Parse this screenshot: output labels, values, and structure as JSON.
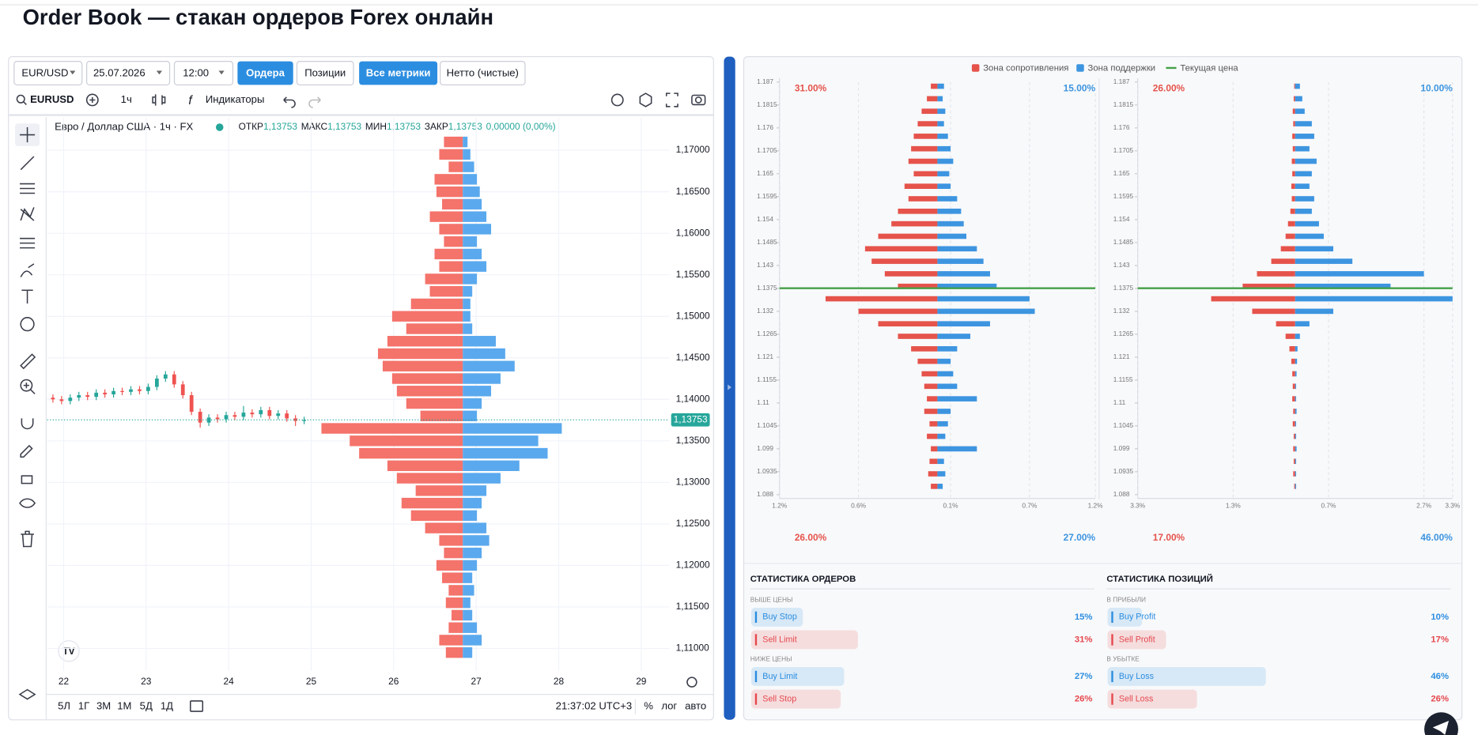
{
  "header": {
    "title": "Order Book — стакан ордеров Forex онлайн"
  },
  "toolbar": {
    "pair": "EUR/USD",
    "date": "25.07.2026",
    "time": "12:00",
    "buttons": [
      "Ордера",
      "Позиции",
      "Все метрики",
      "Нетто (чистые)"
    ]
  },
  "chart_toolbar": {
    "symbol": "EURUSD",
    "interval": "1ч",
    "indicators": "Индикаторы"
  },
  "bottom_bar": {
    "periods": [
      "5Л",
      "1Г",
      "3М",
      "1М",
      "5Д",
      "1Д"
    ],
    "clock": "21:37:02 UTC+3",
    "percent": "%",
    "log": "лог",
    "auto": "авто"
  },
  "chart_data": [
    {
      "type": "candlestick",
      "legend_title": "Евро / Доллар США · 1ч · FX",
      "ohlc": [
        {
          "label": "ОТКР",
          "value": "1,13753"
        },
        {
          "label": "МАКС",
          "value": "1,13753"
        },
        {
          "label": "МИН",
          "value": "1,13753"
        },
        {
          "label": "ЗАКР",
          "value": "1,13753"
        }
      ],
      "change": "0,00000 (0,00%)",
      "x": [
        21.87,
        21.975,
        22.08,
        22.185,
        22.29,
        22.395,
        22.5,
        22.605,
        22.71,
        22.815,
        22.92,
        23.025,
        23.13,
        23.235,
        23.34,
        23.445,
        23.55,
        23.655,
        23.76,
        23.865,
        23.97,
        24.075,
        24.18,
        24.285,
        24.39,
        24.495,
        24.6,
        24.705,
        24.81,
        24.915
      ],
      "open": [
        1.1402,
        1.14,
        1.1398,
        1.1402,
        1.1405,
        1.1403,
        1.1408,
        1.1406,
        1.141,
        1.1409,
        1.1412,
        1.141,
        1.1415,
        1.1425,
        1.143,
        1.1418,
        1.1405,
        1.1385,
        1.1372,
        1.1378,
        1.1376,
        1.1381,
        1.1379,
        1.1384,
        1.1382,
        1.1387,
        1.138,
        1.1383,
        1.1377,
        1.1374
      ],
      "high": [
        1.1406,
        1.1404,
        1.1406,
        1.1409,
        1.1409,
        1.1412,
        1.1412,
        1.1414,
        1.1414,
        1.1416,
        1.1416,
        1.1419,
        1.1429,
        1.1434,
        1.1434,
        1.1422,
        1.1409,
        1.1389,
        1.1382,
        1.1382,
        1.1385,
        1.1385,
        1.1392,
        1.1388,
        1.1391,
        1.1391,
        1.1387,
        1.1387,
        1.1381,
        1.1379
      ],
      "low": [
        1.1396,
        1.1394,
        1.1394,
        1.1398,
        1.1399,
        1.1399,
        1.1402,
        1.1402,
        1.1405,
        1.1405,
        1.1406,
        1.1406,
        1.1411,
        1.1421,
        1.1414,
        1.1401,
        1.1381,
        1.1366,
        1.1368,
        1.1372,
        1.1372,
        1.1375,
        1.1375,
        1.1378,
        1.1378,
        1.1376,
        1.1376,
        1.1373,
        1.1368,
        1.137
      ],
      "close": [
        1.14,
        1.1398,
        1.1402,
        1.1405,
        1.1403,
        1.1408,
        1.1406,
        1.141,
        1.1409,
        1.1412,
        1.141,
        1.1415,
        1.1425,
        1.143,
        1.1418,
        1.1405,
        1.1385,
        1.1372,
        1.1378,
        1.1376,
        1.1381,
        1.1379,
        1.1384,
        1.1382,
        1.1387,
        1.138,
        1.1383,
        1.1377,
        1.1374,
        1.1375
      ],
      "up_color": "#26a69a",
      "down_color": "#ef5350",
      "xlim": [
        21.8,
        29.34
      ],
      "xticks": [
        22,
        23,
        24,
        25,
        26,
        27,
        28,
        29
      ],
      "ylim": [
        1.1073,
        1.1739
      ],
      "yticks": [
        {
          "value": 1.11,
          "label": "1,11000"
        },
        {
          "value": 1.115,
          "label": "1,11500"
        },
        {
          "value": 1.12,
          "label": "1,12000"
        },
        {
          "value": 1.125,
          "label": "1,12500"
        },
        {
          "value": 1.13,
          "label": "1,13000"
        },
        {
          "value": 1.135,
          "label": "1,13500"
        },
        {
          "value": 1.14,
          "label": "1,14000"
        },
        {
          "value": 1.145,
          "label": "1,14500"
        },
        {
          "value": 1.15,
          "label": "1,15000"
        },
        {
          "value": 1.155,
          "label": "1,15500"
        },
        {
          "value": 1.16,
          "label": "1,16000"
        },
        {
          "value": 1.165,
          "label": "1,16500"
        },
        {
          "value": 1.17,
          "label": "1,17000"
        }
      ],
      "grid": true,
      "price_tag": {
        "value": 1.13753,
        "label": "1,13753",
        "color": "#26a69a"
      },
      "order_book": {
        "levels": [
          1.171,
          1.1695,
          1.168,
          1.1665,
          1.165,
          1.1635,
          1.162,
          1.1605,
          1.159,
          1.1575,
          1.156,
          1.1545,
          1.153,
          1.1515,
          1.15,
          1.1485,
          1.147,
          1.1455,
          1.144,
          1.1425,
          1.141,
          1.1395,
          1.138,
          1.1365,
          1.135,
          1.1335,
          1.132,
          1.1305,
          1.129,
          1.1275,
          1.126,
          1.1245,
          1.123,
          1.1215,
          1.12,
          1.1185,
          1.117,
          1.1155,
          1.114,
          1.1125,
          1.111,
          1.1095
        ],
        "sell": [
          20,
          25,
          15,
          30,
          28,
          22,
          35,
          25,
          20,
          30,
          25,
          40,
          35,
          55,
          75,
          60,
          80,
          90,
          85,
          75,
          70,
          60,
          45,
          150,
          120,
          110,
          80,
          70,
          50,
          65,
          55,
          40,
          25,
          20,
          28,
          22,
          15,
          18,
          12,
          15,
          25,
          18
        ],
        "buy": [
          5,
          8,
          12,
          15,
          18,
          20,
          25,
          30,
          15,
          20,
          25,
          15,
          10,
          8,
          8,
          10,
          35,
          45,
          55,
          40,
          30,
          20,
          15,
          105,
          80,
          90,
          60,
          40,
          25,
          20,
          15,
          25,
          28,
          20,
          15,
          10,
          12,
          8,
          10,
          15,
          20,
          10
        ],
        "sell_color": "#f4736b",
        "buy_color": "#5aa9ee"
      }
    },
    {
      "type": "bar",
      "levels": [
        1.186,
        1.183,
        1.18,
        1.177,
        1.174,
        1.171,
        1.168,
        1.165,
        1.162,
        1.159,
        1.156,
        1.153,
        1.15,
        1.147,
        1.144,
        1.141,
        1.138,
        1.135,
        1.132,
        1.129,
        1.126,
        1.123,
        1.12,
        1.117,
        1.114,
        1.111,
        1.108,
        1.105,
        1.102,
        1.099,
        1.096,
        1.093,
        1.09
      ],
      "series": [
        {
          "name": "Зона сопротивления",
          "color": "#e5534b",
          "values": [
            -0.05,
            -0.08,
            -0.12,
            -0.15,
            -0.18,
            -0.2,
            -0.22,
            -0.18,
            -0.25,
            -0.22,
            -0.3,
            -0.35,
            -0.45,
            -0.55,
            -0.5,
            -0.4,
            -0.3,
            -0.85,
            -0.6,
            -0.45,
            -0.3,
            -0.2,
            -0.15,
            -0.12,
            -0.1,
            -0.08,
            -0.1,
            -0.06,
            -0.08,
            -0.05,
            -0.06,
            -0.07,
            -0.05
          ]
        },
        {
          "name": "Зона поддержки",
          "color": "#3d95e0",
          "values": [
            0.05,
            0.04,
            0.06,
            0.05,
            0.08,
            0.1,
            0.12,
            0.09,
            0.1,
            0.15,
            0.18,
            0.2,
            0.22,
            0.3,
            0.35,
            0.4,
            0.45,
            0.7,
            0.74,
            0.4,
            0.25,
            0.15,
            0.1,
            0.12,
            0.15,
            0.3,
            0.1,
            0.08,
            0.06,
            0.3,
            0.05,
            0.06,
            0.04
          ]
        }
      ],
      "current_price": {
        "name": "Текущая цена",
        "value": 1.13753,
        "color": "#43a047"
      },
      "xlim": [
        -1.2,
        1.2
      ],
      "xticks": [
        {
          "value": -1.2,
          "label": "1.2%"
        },
        {
          "value": -0.6,
          "label": "0.6%"
        },
        {
          "value": 0.1,
          "label": "0.1%"
        },
        {
          "value": 0.7,
          "label": "0.7%"
        },
        {
          "value": 1.2,
          "label": "1.2%"
        }
      ],
      "ylim": [
        1.088,
        1.187
      ],
      "yticks": [
        1.187,
        1.1815,
        1.176,
        1.1705,
        1.165,
        1.1595,
        1.154,
        1.1485,
        1.143,
        1.1375,
        1.132,
        1.1265,
        1.121,
        1.1155,
        1.11,
        1.1045,
        1.099,
        1.0935,
        1.088
      ],
      "corner_labels": {
        "top_left": "31.00%",
        "top_right": "15.00%",
        "bottom_left": "26.00%",
        "bottom_right": "27.00%"
      }
    },
    {
      "type": "bar",
      "levels": [
        1.186,
        1.183,
        1.18,
        1.177,
        1.174,
        1.171,
        1.168,
        1.165,
        1.162,
        1.159,
        1.156,
        1.153,
        1.15,
        1.147,
        1.144,
        1.141,
        1.138,
        1.135,
        1.132,
        1.129,
        1.126,
        1.123,
        1.12,
        1.117,
        1.114,
        1.111,
        1.108,
        1.105,
        1.102,
        1.099,
        1.096,
        1.093,
        1.09
      ],
      "series": [
        {
          "color": "#e5534b",
          "values": [
            -0.02,
            -0.03,
            -0.05,
            -0.04,
            -0.06,
            -0.05,
            -0.07,
            -0.06,
            -0.08,
            -0.07,
            -0.1,
            -0.15,
            -0.2,
            -0.3,
            -0.5,
            -0.8,
            -1.1,
            -1.76,
            -0.9,
            -0.4,
            -0.2,
            -0.12,
            -0.08,
            -0.06,
            -0.05,
            -0.06,
            -0.04,
            -0.05,
            -0.03,
            -0.04,
            -0.03,
            -0.04,
            -0.02
          ]
        },
        {
          "color": "#3d95e0",
          "values": [
            0.1,
            0.15,
            0.2,
            0.35,
            0.4,
            0.3,
            0.45,
            0.35,
            0.3,
            0.4,
            0.35,
            0.5,
            0.6,
            0.8,
            1.2,
            2.7,
            2.0,
            3.3,
            0.8,
            0.3,
            0.1,
            0.05,
            0.04,
            0.03,
            0.02,
            0.02,
            0.03,
            0.02,
            0.02,
            0.03,
            0.02,
            0.02,
            0.02
          ]
        }
      ],
      "current_price": {
        "value": 1.13753,
        "color": "#43a047"
      },
      "xlim": [
        -3.3,
        3.3
      ],
      "xticks": [
        {
          "value": -3.3,
          "label": "3.3%"
        },
        {
          "value": -1.3,
          "label": "1.3%"
        },
        {
          "value": 0.7,
          "label": "0.7%"
        },
        {
          "value": 2.7,
          "label": "2.7%"
        },
        {
          "value": 3.3,
          "label": "3.3%"
        }
      ],
      "ylim": [
        1.088,
        1.187
      ],
      "yticks": [
        1.187,
        1.1815,
        1.176,
        1.1705,
        1.165,
        1.1595,
        1.154,
        1.1485,
        1.143,
        1.1375,
        1.132,
        1.1265,
        1.121,
        1.1155,
        1.11,
        1.1045,
        1.099,
        1.0935,
        1.088
      ],
      "corner_labels": {
        "top_left": "26.00%",
        "top_right": "10.00%",
        "bottom_left": "17.00%",
        "bottom_right": "46.00%"
      }
    }
  ],
  "stats": [
    {
      "title": "СТАТИСТИКА ОРДЕРОВ",
      "groups": [
        {
          "label": "ВЫШЕ ЦЕНЫ",
          "items": [
            {
              "name": "Buy Stop",
              "value": 15,
              "value_label": "15%",
              "color": "#2b8de0"
            },
            {
              "name": "Sell Limit",
              "value": 31,
              "value_label": "31%",
              "color": "#e5484d"
            }
          ]
        },
        {
          "label": "НИЖЕ ЦЕНЫ",
          "items": [
            {
              "name": "Buy Limit",
              "value": 27,
              "value_label": "27%",
              "color": "#2b8de0"
            },
            {
              "name": "Sell Stop",
              "value": 26,
              "value_label": "26%",
              "color": "#e5484d"
            }
          ]
        }
      ]
    },
    {
      "title": "СТАТИСТИКА ПОЗИЦИЙ",
      "groups": [
        {
          "label": "В ПРИБЫЛИ",
          "items": [
            {
              "name": "Buy Profit",
              "value": 10,
              "value_label": "10%",
              "color": "#2b8de0"
            },
            {
              "name": "Sell Profit",
              "value": 17,
              "value_label": "17%",
              "color": "#e5484d"
            }
          ]
        },
        {
          "label": "В УБЫТКЕ",
          "items": [
            {
              "name": "Buy Loss",
              "value": 46,
              "value_label": "46%",
              "color": "#2b8de0"
            },
            {
              "name": "Sell Loss",
              "value": 26,
              "value_label": "26%",
              "color": "#e5484d"
            }
          ]
        }
      ]
    }
  ]
}
